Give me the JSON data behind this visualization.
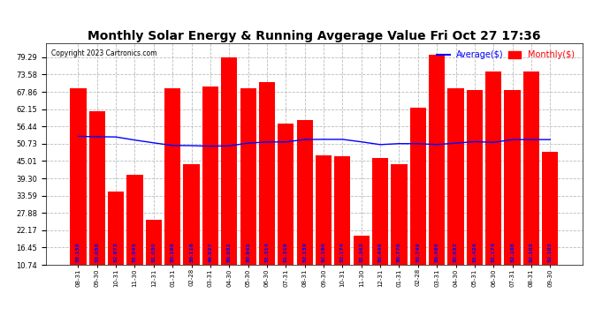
{
  "title": "Monthly Solar Energy & Running Avgerage Value Fri Oct 27 17:36",
  "copyright": "Copyright 2023 Cartronics.com",
  "categories": [
    "08-31",
    "09-30",
    "10-31",
    "11-30",
    "12-31",
    "01-31",
    "02-28",
    "03-31",
    "04-30",
    "05-30",
    "06-30",
    "07-31",
    "08-31",
    "09-30",
    "10-31",
    "11-30",
    "12-31",
    "01-31",
    "02-28",
    "03-31",
    "04-30",
    "05-31",
    "06-30",
    "07-31",
    "08-31",
    "09-30"
  ],
  "bar_values": [
    69.0,
    61.5,
    35.0,
    40.5,
    25.5,
    69.0,
    44.0,
    69.5,
    79.3,
    69.0,
    71.0,
    57.5,
    58.5,
    47.0,
    46.5,
    20.5,
    46.0,
    44.0,
    62.5,
    80.0,
    69.0,
    68.5,
    74.5,
    68.5,
    74.5,
    48.0
  ],
  "avg_values": [
    53.158,
    53.058,
    52.973,
    51.945,
    51.03,
    50.168,
    50.116,
    49.927,
    50.032,
    50.945,
    51.314,
    51.319,
    52.139,
    52.18,
    52.174,
    51.362,
    50.449,
    50.77,
    50.749,
    50.469,
    50.932,
    51.426,
    51.174,
    52.108,
    52.103,
    52.103
  ],
  "bar_labels": [
    "53.158",
    "53.058",
    "52.973",
    "51.945",
    "51.030",
    "50.168",
    "50.116",
    "49.927",
    "50.032",
    "50.945",
    "51.314",
    "51.319",
    "52.139",
    "52.180",
    "52.174",
    "51.362",
    "50.449",
    "50.770",
    "50.749",
    "50.469",
    "50.932",
    "51.426",
    "51.174",
    "52.108",
    "52.103",
    "52.103"
  ],
  "bar_color": "#ff0000",
  "avg_line_color": "#0000ff",
  "background_color": "#ffffff",
  "title_fontsize": 10,
  "ytick_labels": [
    "10.74",
    "16.45",
    "22.17",
    "27.88",
    "33.59",
    "39.30",
    "45.01",
    "50.73",
    "56.44",
    "62.15",
    "67.86",
    "73.58",
    "79.29"
  ],
  "ytick_values": [
    10.74,
    16.45,
    22.17,
    27.88,
    33.59,
    39.3,
    45.01,
    50.73,
    56.44,
    62.15,
    67.86,
    73.58,
    79.29
  ],
  "ymin": 10.74,
  "ymax": 84.0,
  "legend_avg_label": "Average($)",
  "legend_monthly_label": "Monthly($)"
}
